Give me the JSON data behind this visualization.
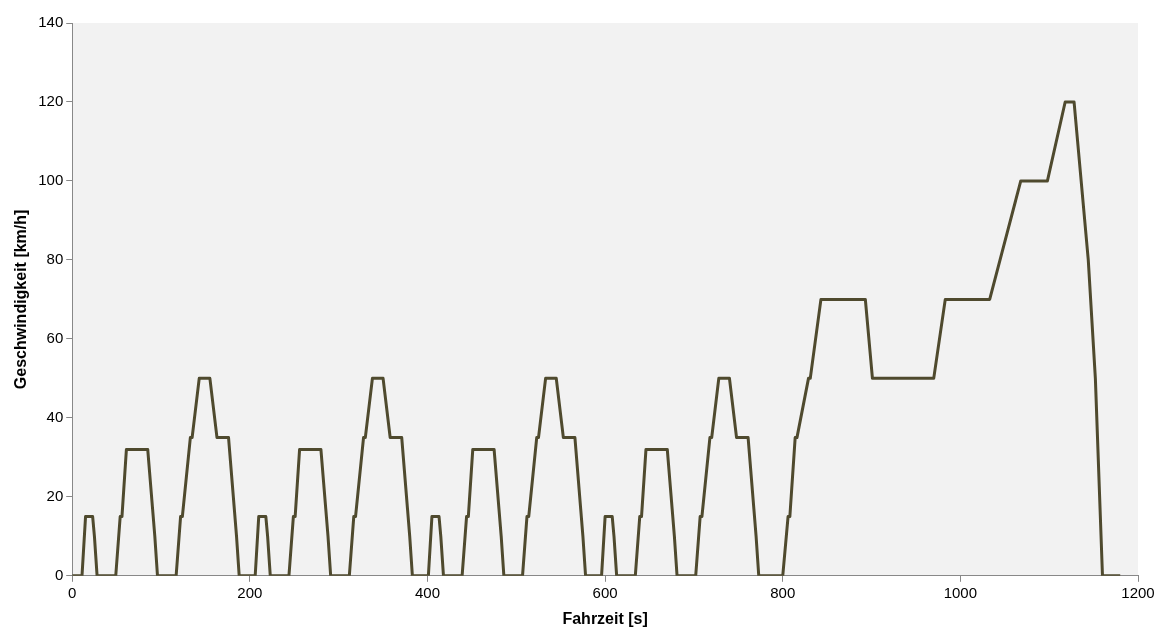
{
  "chart_data": {
    "type": "line",
    "xlabel": "Fahrzeit [s]",
    "ylabel": "Geschwindigkeit [km/h]",
    "x": [
      0,
      11,
      15,
      23,
      25,
      28,
      49,
      54,
      56,
      61,
      85,
      93,
      96,
      117,
      122,
      124,
      133,
      135,
      143,
      155,
      163,
      176,
      185,
      188,
      195,
      206,
      210,
      218,
      220,
      223,
      244,
      249,
      251,
      256,
      280,
      288,
      291,
      312,
      317,
      319,
      328,
      330,
      338,
      350,
      358,
      371,
      380,
      383,
      390,
      401,
      405,
      413,
      415,
      418,
      439,
      444,
      446,
      451,
      475,
      483,
      486,
      507,
      512,
      514,
      523,
      525,
      533,
      545,
      553,
      566,
      575,
      578,
      585,
      596,
      600,
      608,
      610,
      613,
      634,
      639,
      641,
      646,
      670,
      678,
      681,
      702,
      707,
      709,
      718,
      720,
      728,
      740,
      748,
      761,
      770,
      773,
      780,
      800,
      806,
      808,
      814,
      816,
      829,
      831,
      843,
      893,
      901,
      970,
      983,
      1033,
      1068,
      1098,
      1118,
      1128,
      1144,
      1152,
      1160,
      1180
    ],
    "series": [
      {
        "color": "#4f4a2e",
        "values": [
          0,
          0,
          15,
          15,
          10,
          0,
          0,
          15,
          15,
          32,
          32,
          10,
          0,
          0,
          15,
          15,
          35,
          35,
          50,
          50,
          35,
          35,
          10,
          0,
          0,
          0,
          15,
          15,
          10,
          0,
          0,
          15,
          15,
          32,
          32,
          10,
          0,
          0,
          15,
          15,
          35,
          35,
          50,
          50,
          35,
          35,
          10,
          0,
          0,
          0,
          15,
          15,
          10,
          0,
          0,
          15,
          15,
          32,
          32,
          10,
          0,
          0,
          15,
          15,
          35,
          35,
          50,
          50,
          35,
          35,
          10,
          0,
          0,
          0,
          15,
          15,
          10,
          0,
          0,
          15,
          15,
          32,
          32,
          10,
          0,
          0,
          15,
          15,
          35,
          35,
          50,
          50,
          35,
          35,
          10,
          0,
          0,
          0,
          15,
          15,
          35,
          35,
          50,
          50,
          70,
          70,
          50,
          50,
          70,
          70,
          100,
          100,
          120,
          120,
          80,
          50,
          0,
          0
        ]
      }
    ],
    "xlim": [
      0,
      1200
    ],
    "xticks": [
      0,
      200,
      400,
      600,
      800,
      1000,
      1200
    ],
    "ylim": [
      0,
      140
    ],
    "yticks": [
      0,
      20,
      40,
      60,
      80,
      100,
      120,
      140
    ],
    "grid": false,
    "legend": false
  }
}
